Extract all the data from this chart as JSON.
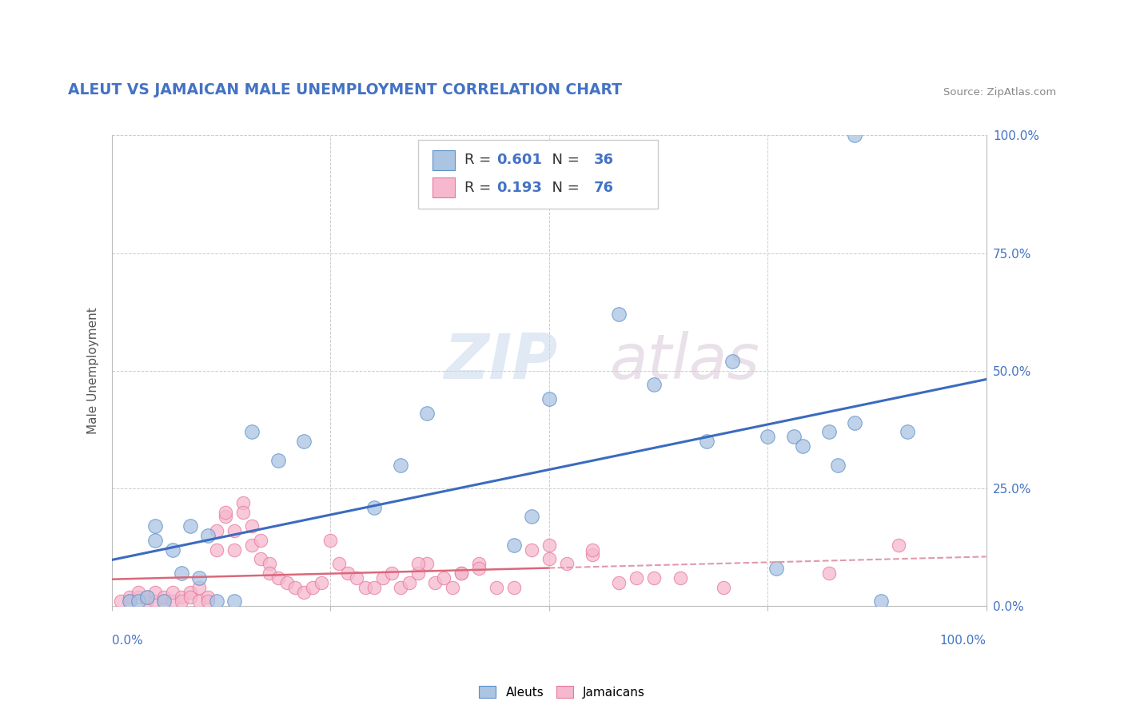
{
  "title": "ALEUT VS JAMAICAN MALE UNEMPLOYMENT CORRELATION CHART",
  "source": "Source: ZipAtlas.com",
  "ylabel": "Male Unemployment",
  "yticks": [
    "0.0%",
    "25.0%",
    "50.0%",
    "75.0%",
    "100.0%"
  ],
  "ytick_vals": [
    0.0,
    0.25,
    0.5,
    0.75,
    1.0
  ],
  "xtick_labels": [
    "0.0%",
    "100.0%"
  ],
  "xlim": [
    0.0,
    1.0
  ],
  "ylim": [
    0.0,
    1.0
  ],
  "aleut_R": 0.601,
  "aleut_N": 36,
  "jamaican_R": 0.193,
  "jamaican_N": 76,
  "aleut_color": "#aac4e2",
  "jamaican_color": "#f5b8ce",
  "aleut_edge_color": "#5b8fc9",
  "jamaican_edge_color": "#e8789a",
  "aleut_line_color": "#3b6bbf",
  "jamaican_line_color": "#d9687a",
  "jamaican_dash_color": "#e09aaa",
  "title_color": "#4472c4",
  "source_color": "#888888",
  "axis_label_color": "#4472c4",
  "ylabel_color": "#555555",
  "watermark_text": "ZIPatlas",
  "legend_r_color": "#4472c4",
  "legend_label_color": "#333333",
  "aleut_scatter_x": [
    0.02,
    0.03,
    0.04,
    0.05,
    0.06,
    0.07,
    0.09,
    0.1,
    0.11,
    0.12,
    0.14,
    0.16,
    0.19,
    0.22,
    0.3,
    0.36,
    0.46,
    0.5,
    0.58,
    0.62,
    0.68,
    0.71,
    0.75,
    0.78,
    0.82,
    0.85,
    0.83,
    0.88,
    0.91,
    0.79,
    0.05,
    0.08,
    0.33,
    0.48,
    0.76,
    0.85
  ],
  "aleut_scatter_y": [
    0.01,
    0.01,
    0.02,
    0.14,
    0.01,
    0.12,
    0.17,
    0.06,
    0.15,
    0.01,
    0.01,
    0.37,
    0.31,
    0.35,
    0.21,
    0.41,
    0.13,
    0.44,
    0.62,
    0.47,
    0.35,
    0.52,
    0.36,
    0.36,
    0.37,
    0.39,
    0.3,
    0.01,
    0.37,
    0.34,
    0.17,
    0.07,
    0.3,
    0.19,
    0.08,
    1.0
  ],
  "jamaican_scatter_x": [
    0.01,
    0.02,
    0.02,
    0.03,
    0.03,
    0.04,
    0.04,
    0.05,
    0.05,
    0.06,
    0.06,
    0.07,
    0.07,
    0.08,
    0.08,
    0.09,
    0.09,
    0.1,
    0.1,
    0.11,
    0.11,
    0.12,
    0.12,
    0.13,
    0.13,
    0.14,
    0.14,
    0.15,
    0.15,
    0.16,
    0.16,
    0.17,
    0.17,
    0.18,
    0.18,
    0.19,
    0.2,
    0.21,
    0.22,
    0.23,
    0.24,
    0.25,
    0.26,
    0.27,
    0.28,
    0.29,
    0.3,
    0.31,
    0.32,
    0.33,
    0.34,
    0.35,
    0.36,
    0.37,
    0.38,
    0.39,
    0.4,
    0.42,
    0.44,
    0.46,
    0.48,
    0.5,
    0.52,
    0.55,
    0.58,
    0.62,
    0.42,
    0.5,
    0.55,
    0.6,
    0.35,
    0.4,
    0.65,
    0.7,
    0.82,
    0.9
  ],
  "jamaican_scatter_y": [
    0.01,
    0.02,
    0.01,
    0.02,
    0.03,
    0.01,
    0.02,
    0.01,
    0.03,
    0.01,
    0.02,
    0.01,
    0.03,
    0.02,
    0.01,
    0.03,
    0.02,
    0.01,
    0.04,
    0.02,
    0.01,
    0.16,
    0.12,
    0.19,
    0.2,
    0.16,
    0.12,
    0.22,
    0.2,
    0.17,
    0.13,
    0.14,
    0.1,
    0.09,
    0.07,
    0.06,
    0.05,
    0.04,
    0.03,
    0.04,
    0.05,
    0.14,
    0.09,
    0.07,
    0.06,
    0.04,
    0.04,
    0.06,
    0.07,
    0.04,
    0.05,
    0.07,
    0.09,
    0.05,
    0.06,
    0.04,
    0.07,
    0.09,
    0.04,
    0.04,
    0.12,
    0.13,
    0.09,
    0.11,
    0.05,
    0.06,
    0.08,
    0.1,
    0.12,
    0.06,
    0.09,
    0.07,
    0.06,
    0.04,
    0.07,
    0.13
  ]
}
